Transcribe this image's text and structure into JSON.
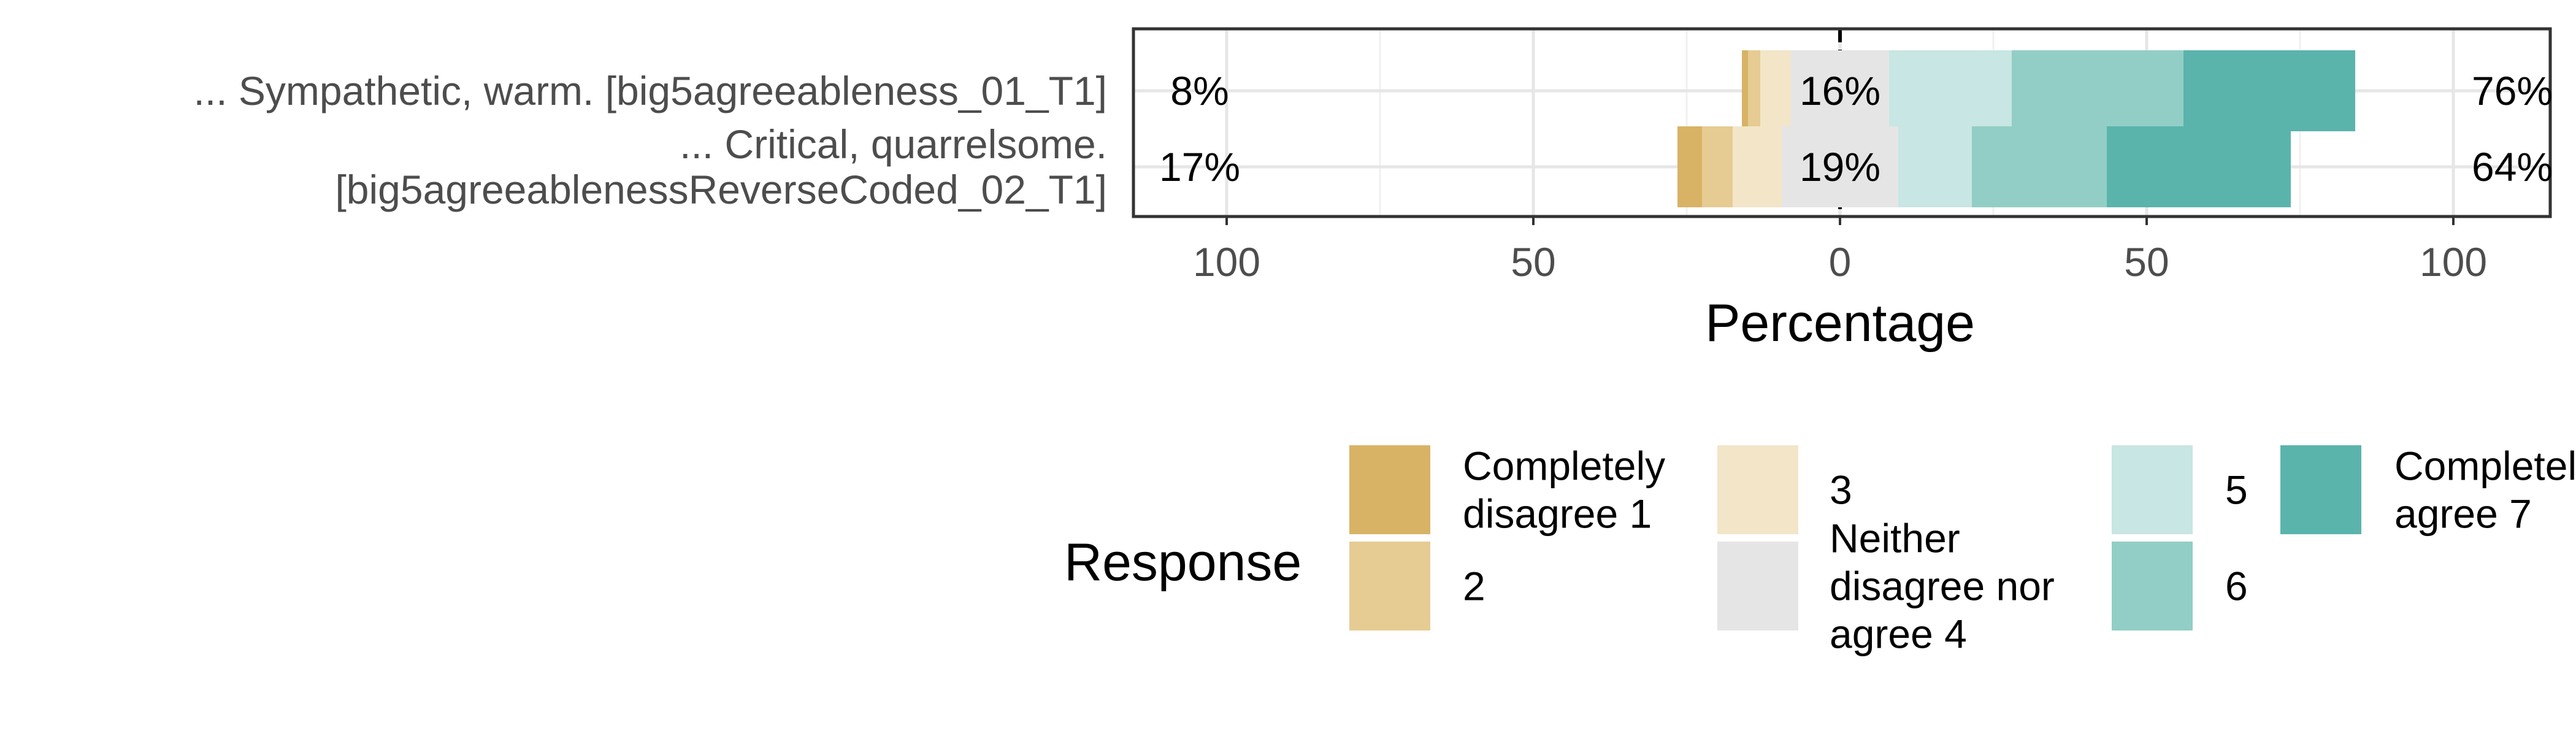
{
  "chart_data": {
    "type": "bar",
    "subtype": "diverging-stacked-likert",
    "xlabel": "Percentage",
    "x_ticks": [
      {
        "value": -100,
        "label": "100"
      },
      {
        "value": -50,
        "label": "50"
      },
      {
        "value": 0,
        "label": "0"
      },
      {
        "value": 50,
        "label": "50"
      },
      {
        "value": 100,
        "label": "100"
      }
    ],
    "xlim": [
      -100,
      100
    ],
    "grid": true,
    "legend_position": "bottom",
    "legend_title": "Response",
    "categories": [
      {
        "lines": [
          "... Sympathetic, warm. [big5agreeableness_01_T1]"
        ]
      },
      {
        "lines": [
          "... Critical, quarrelsome.",
          "[big5agreeablenessReverseCoded_02_T1]"
        ]
      }
    ],
    "series": [
      {
        "name": [
          "Completely",
          "disagree 1"
        ],
        "color": "#D8B365",
        "values": [
          1,
          4
        ]
      },
      {
        "name": [
          "2"
        ],
        "color": "#E6CC93",
        "values": [
          2,
          5
        ]
      },
      {
        "name": [
          "3"
        ],
        "color": "#F3E5C8",
        "values": [
          5,
          8
        ]
      },
      {
        "name": [
          "Neither",
          "disagree nor",
          "agree 4"
        ],
        "color": "#E5E5E5",
        "values": [
          16,
          19
        ]
      },
      {
        "name": [
          "5"
        ],
        "color": "#C8E6E3",
        "values": [
          20,
          12
        ]
      },
      {
        "name": [
          "6"
        ],
        "color": "#92CEC5",
        "values": [
          28,
          22
        ]
      },
      {
        "name": [
          "Completely",
          "agree 7"
        ],
        "color": "#5AB4AC",
        "values": [
          28,
          30
        ]
      }
    ],
    "left_labels": [
      "8%",
      "17%"
    ],
    "center_labels": [
      "16%",
      "19%"
    ],
    "right_labels": [
      "76%",
      "64%"
    ]
  }
}
